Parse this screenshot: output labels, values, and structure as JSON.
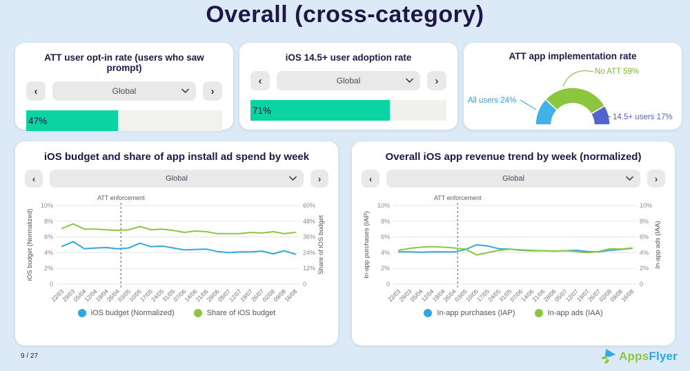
{
  "page": {
    "title": "Overall (cross-category)",
    "page_number": "9 / 27",
    "background": "#dce9f6"
  },
  "icons": {
    "prev": "‹",
    "next": "›"
  },
  "colors": {
    "navy": "#1e1747",
    "progress_fill": "#0bd3a2",
    "progress_track": "#f1f1ee",
    "control_gray": "#e9e9e9",
    "line_blue": "#30a7e0",
    "line_green": "#8cc63f",
    "donut_blue": "#41b2e8",
    "donut_green": "#8cc63f",
    "donut_indigo": "#5263d2",
    "logo_green": "#8dc63f",
    "logo_blue": "#29a8e0"
  },
  "cards": {
    "opt_in": {
      "title": "ATT user opt-in rate (users who saw prompt)",
      "selector": {
        "value": "Global"
      },
      "value": 47,
      "label": "47%"
    },
    "adoption": {
      "title": "iOS 14.5+ user adoption rate",
      "selector": {
        "value": "Global"
      },
      "value": 71,
      "label": "71%"
    },
    "implementation": {
      "title": "ATT app implementation rate",
      "segments": [
        {
          "label": "All users 24%",
          "value": 24,
          "color": "#41b2e8",
          "text_color": "#2f9fdf"
        },
        {
          "label": "No ATT 59%",
          "value": 59,
          "color": "#8cc63f",
          "text_color": "#7cb82f"
        },
        {
          "label": "14.5+ users 17%",
          "value": 17,
          "color": "#5263d2",
          "text_color": "#4f5fd0"
        }
      ]
    }
  },
  "chart_data": [
    {
      "type": "line",
      "title": "iOS budget and share of app install ad spend by week",
      "selector": "Global",
      "grid": true,
      "legend_position": "bottom",
      "categories": [
        "22/03",
        "29/03",
        "05/04",
        "12/04",
        "19/04",
        "26/04",
        "03/05",
        "10/05",
        "17/05",
        "24/05",
        "31/05",
        "07/06",
        "14/06",
        "21/06",
        "28/06",
        "05/07",
        "12/07",
        "19/07",
        "26/07",
        "02/08",
        "09/08",
        "16/08"
      ],
      "left_axis": {
        "label": "iOS budget (Normalized)",
        "max": 10,
        "ticks": [
          "10%",
          "8%",
          "6%",
          "4%",
          "2%",
          "0"
        ]
      },
      "right_axis": {
        "label": "Share of iOS budget",
        "max": 60,
        "ticks": [
          "60%",
          "48%",
          "36%",
          "24%",
          "12%",
          "0"
        ]
      },
      "annotation": {
        "text": "ATT enforcement",
        "x_index": 5.3
      },
      "series": [
        {
          "name": "iOS budget (Normalized)",
          "axis": "left",
          "color": "#30a7e0",
          "values": [
            4.8,
            5.4,
            4.5,
            4.6,
            4.65,
            4.5,
            4.6,
            5.2,
            4.75,
            4.85,
            4.6,
            4.35,
            4.4,
            4.45,
            4.15,
            4.0,
            4.1,
            4.1,
            4.2,
            3.85,
            4.25,
            3.8
          ]
        },
        {
          "name": "Share of iOS budget",
          "axis": "right",
          "color": "#8cc63f",
          "values": [
            42.5,
            46,
            42,
            42,
            41.5,
            41,
            41.5,
            44,
            41.5,
            42,
            41,
            39.5,
            40.5,
            40,
            38.5,
            38.5,
            38.5,
            39.5,
            39,
            40,
            38.5,
            39.5
          ]
        }
      ]
    },
    {
      "type": "line",
      "title": "Overall iOS app revenue trend by week (normalized)",
      "selector": "Global",
      "grid": true,
      "legend_position": "bottom",
      "categories": [
        "22/03",
        "29/03",
        "05/04",
        "12/04",
        "19/04",
        "26/04",
        "03/05",
        "10/05",
        "17/05",
        "24/05",
        "31/05",
        "07/06",
        "14/06",
        "21/06",
        "28/06",
        "05/07",
        "12/07",
        "19/07",
        "26/07",
        "02/08",
        "09/08",
        "16/08"
      ],
      "left_axis": {
        "label": "In-app purchases (IAP)",
        "max": 10,
        "ticks": [
          "10%",
          "8%",
          "6%",
          "4%",
          "2%",
          "0"
        ]
      },
      "right_axis": {
        "label": "In-app ads (IAA)",
        "max": 10,
        "ticks": [
          "10%",
          "8%",
          "6%",
          "4%",
          "2%",
          "0"
        ]
      },
      "annotation": {
        "text": "ATT enforcement",
        "x_index": 5.3
      },
      "series": [
        {
          "name": "In-app purchases (IAP)",
          "axis": "left",
          "color": "#30a7e0",
          "values": [
            4.1,
            4.1,
            4.05,
            4.1,
            4.1,
            4.1,
            4.4,
            5.0,
            4.85,
            4.5,
            4.45,
            4.3,
            4.25,
            4.25,
            4.2,
            4.25,
            4.3,
            4.15,
            4.1,
            4.3,
            4.4,
            4.55
          ]
        },
        {
          "name": "In-app ads (IAA)",
          "axis": "right",
          "color": "#8cc63f",
          "values": [
            4.3,
            4.55,
            4.7,
            4.75,
            4.7,
            4.6,
            4.45,
            3.7,
            4.0,
            4.3,
            4.45,
            4.35,
            4.3,
            4.25,
            4.2,
            4.25,
            4.15,
            4.0,
            4.15,
            4.5,
            4.45,
            4.6
          ]
        }
      ]
    }
  ],
  "logo": {
    "apps": "Apps",
    "flyer": "Flyer"
  }
}
